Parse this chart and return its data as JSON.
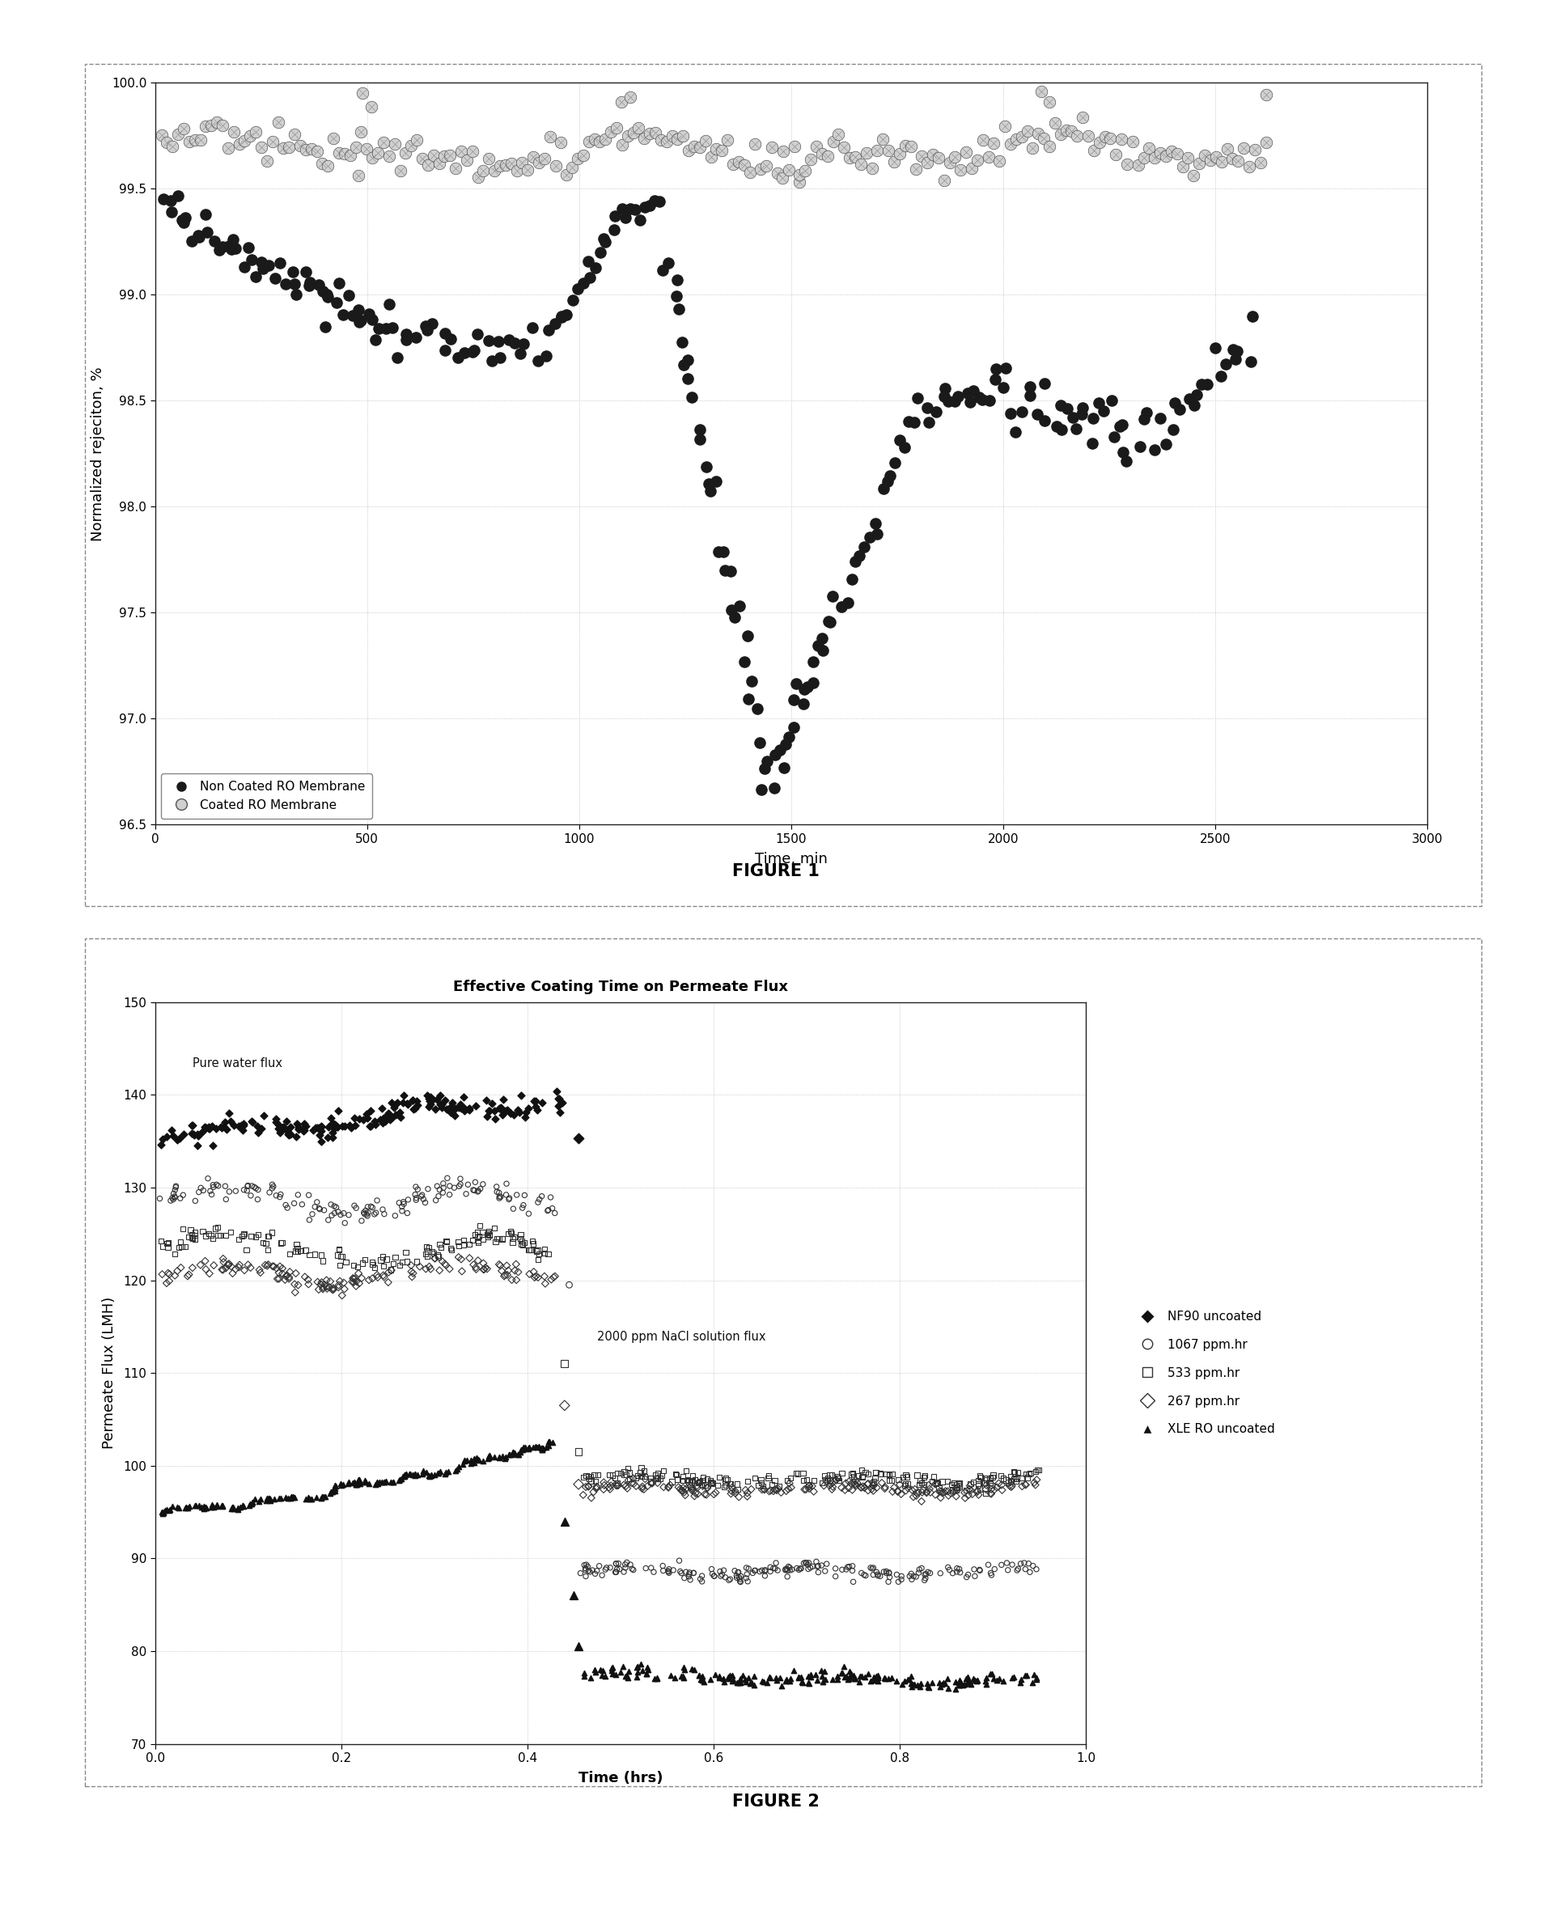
{
  "fig1": {
    "xlabel": "Time, min",
    "ylabel": "Normalized rejeciton, %",
    "xlim": [
      0,
      3000
    ],
    "ylim": [
      96.5,
      100.0
    ],
    "yticks": [
      96.5,
      97.0,
      97.5,
      98.0,
      98.5,
      99.0,
      99.5,
      100.0
    ],
    "xticks": [
      0,
      500,
      1000,
      1500,
      2000,
      2500,
      3000
    ],
    "caption": "FIGURE 1"
  },
  "fig2": {
    "title": "Effective Coating Time on Permeate Flux",
    "xlabel": "Time (hrs)",
    "ylabel": "Permeate Flux (LMH)",
    "xlim": [
      0,
      1.0
    ],
    "ylim": [
      70,
      150
    ],
    "yticks": [
      70,
      80,
      90,
      100,
      110,
      120,
      130,
      140,
      150
    ],
    "xticks": [
      0,
      0.2,
      0.4,
      0.6,
      0.8,
      1.0
    ],
    "ann1_text": "Pure water flux",
    "ann1_x": 0.04,
    "ann1_y": 143.0,
    "ann2_text": "2000 ppm NaCl solution flux",
    "ann2_x": 0.475,
    "ann2_y": 113.5,
    "caption": "FIGURE 2"
  }
}
